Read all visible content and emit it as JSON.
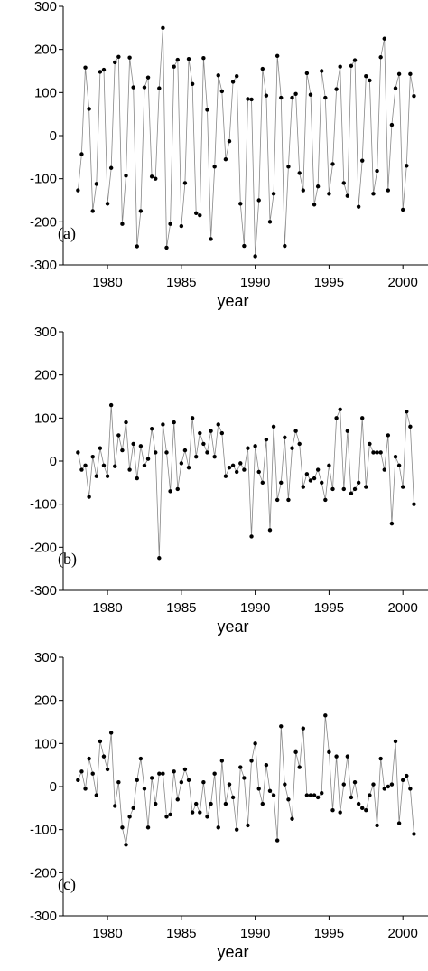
{
  "chart_data": [
    {
      "type": "line",
      "annotation": "(a)",
      "xlabel": "year",
      "x": [
        1978,
        1978.25,
        1978.5,
        1978.75,
        1979,
        1979.25,
        1979.5,
        1979.75,
        1980,
        1980.25,
        1980.5,
        1980.75,
        1981,
        1981.25,
        1981.5,
        1981.75,
        1982,
        1982.25,
        1982.5,
        1982.75,
        1983,
        1983.25,
        1983.5,
        1983.75,
        1984,
        1984.25,
        1984.5,
        1984.75,
        1985,
        1985.25,
        1985.5,
        1985.75,
        1986,
        1986.25,
        1986.5,
        1986.75,
        1987,
        1987.25,
        1987.5,
        1987.75,
        1988,
        1988.25,
        1988.5,
        1988.75,
        1989,
        1989.25,
        1989.5,
        1989.75,
        1990,
        1990.25,
        1990.5,
        1990.75,
        1991,
        1991.25,
        1991.5,
        1991.75,
        1992,
        1992.25,
        1992.5,
        1992.75,
        1993,
        1993.25,
        1993.5,
        1993.75,
        1994,
        1994.25,
        1994.5,
        1994.75,
        1995,
        1995.25,
        1995.5,
        1995.75,
        1996,
        1996.25,
        1996.5,
        1996.75,
        1997,
        1997.25,
        1997.5,
        1997.75,
        1998,
        1998.25,
        1998.5,
        1998.75,
        1999,
        1999.25,
        1999.5,
        1999.75,
        2000,
        2000.25,
        2000.5,
        2000.75
      ],
      "values": [
        -127,
        -43,
        158,
        62,
        -175,
        -112,
        148,
        153,
        -158,
        -75,
        170,
        183,
        -205,
        -93,
        181,
        112,
        -257,
        -175,
        112,
        135,
        -95,
        -100,
        110,
        250,
        -260,
        -205,
        160,
        176,
        -210,
        -110,
        178,
        120,
        -180,
        -185,
        180,
        60,
        -240,
        -72,
        140,
        103,
        -55,
        -13,
        125,
        138,
        -158,
        -256,
        85,
        84,
        -280,
        -150,
        155,
        93,
        -200,
        -135,
        185,
        88,
        -256,
        -72,
        88,
        97,
        -87,
        -127,
        145,
        95,
        -160,
        -118,
        150,
        88,
        -135,
        -66,
        108,
        160,
        -110,
        -140,
        162,
        175,
        -165,
        -58,
        138,
        128,
        -135,
        -82,
        182,
        225,
        -127,
        25,
        110,
        143,
        -172,
        -70,
        143,
        92
      ],
      "xlim": [
        1977,
        2001.7
      ],
      "xticks": [
        1980,
        1985,
        1990,
        1995,
        2000
      ],
      "ylim": [
        -300,
        300
      ],
      "yticks": [
        -300,
        -200,
        -100,
        0,
        100,
        200,
        300
      ],
      "color": "#888888",
      "marker_color": "#000000"
    },
    {
      "type": "line",
      "annotation": "(b)",
      "xlabel": "year",
      "x": [
        1978,
        1978.25,
        1978.5,
        1978.75,
        1979,
        1979.25,
        1979.5,
        1979.75,
        1980,
        1980.25,
        1980.5,
        1980.75,
        1981,
        1981.25,
        1981.5,
        1981.75,
        1982,
        1982.25,
        1982.5,
        1982.75,
        1983,
        1983.25,
        1983.5,
        1983.75,
        1984,
        1984.25,
        1984.5,
        1984.75,
        1985,
        1985.25,
        1985.5,
        1985.75,
        1986,
        1986.25,
        1986.5,
        1986.75,
        1987,
        1987.25,
        1987.5,
        1987.75,
        1988,
        1988.25,
        1988.5,
        1988.75,
        1989,
        1989.25,
        1989.5,
        1989.75,
        1990,
        1990.25,
        1990.5,
        1990.75,
        1991,
        1991.25,
        1991.5,
        1991.75,
        1992,
        1992.25,
        1992.5,
        1992.75,
        1993,
        1993.25,
        1993.5,
        1993.75,
        1994,
        1994.25,
        1994.5,
        1994.75,
        1995,
        1995.25,
        1995.5,
        1995.75,
        1996,
        1996.25,
        1996.5,
        1996.75,
        1997,
        1997.25,
        1997.5,
        1997.75,
        1998,
        1998.25,
        1998.5,
        1998.75,
        1999,
        1999.25,
        1999.5,
        1999.75,
        2000,
        2000.25,
        2000.5,
        2000.75
      ],
      "values": [
        20,
        -20,
        -10,
        -83,
        10,
        -35,
        30,
        -10,
        -35,
        130,
        -12,
        60,
        25,
        90,
        -20,
        40,
        -40,
        35,
        -10,
        5,
        75,
        20,
        -225,
        85,
        20,
        -70,
        90,
        -65,
        -5,
        25,
        -15,
        100,
        10,
        65,
        40,
        20,
        70,
        10,
        85,
        65,
        -35,
        -15,
        -10,
        -25,
        -5,
        -20,
        30,
        -175,
        35,
        -25,
        -50,
        50,
        -160,
        80,
        -90,
        -50,
        55,
        -90,
        30,
        70,
        40,
        -60,
        -30,
        -45,
        -40,
        -20,
        -50,
        -90,
        -10,
        -65,
        100,
        120,
        -65,
        70,
        -75,
        -65,
        -50,
        100,
        -60,
        40,
        20,
        20,
        20,
        -20,
        60,
        -145,
        10,
        -10,
        -60,
        115,
        80,
        -100
      ],
      "xlim": [
        1977,
        2001.7
      ],
      "xticks": [
        1980,
        1985,
        1990,
        1995,
        2000
      ],
      "ylim": [
        -300,
        300
      ],
      "yticks": [
        -300,
        -200,
        -100,
        0,
        100,
        200,
        300
      ],
      "color": "#888888",
      "marker_color": "#000000"
    },
    {
      "type": "line",
      "annotation": "(c)",
      "xlabel": "year",
      "x": [
        1978,
        1978.25,
        1978.5,
        1978.75,
        1979,
        1979.25,
        1979.5,
        1979.75,
        1980,
        1980.25,
        1980.5,
        1980.75,
        1981,
        1981.25,
        1981.5,
        1981.75,
        1982,
        1982.25,
        1982.5,
        1982.75,
        1983,
        1983.25,
        1983.5,
        1983.75,
        1984,
        1984.25,
        1984.5,
        1984.75,
        1985,
        1985.25,
        1985.5,
        1985.75,
        1986,
        1986.25,
        1986.5,
        1986.75,
        1987,
        1987.25,
        1987.5,
        1987.75,
        1988,
        1988.25,
        1988.5,
        1988.75,
        1989,
        1989.25,
        1989.5,
        1989.75,
        1990,
        1990.25,
        1990.5,
        1990.75,
        1991,
        1991.25,
        1991.5,
        1991.75,
        1992,
        1992.25,
        1992.5,
        1992.75,
        1993,
        1993.25,
        1993.5,
        1993.75,
        1994,
        1994.25,
        1994.5,
        1994.75,
        1995,
        1995.25,
        1995.5,
        1995.75,
        1996,
        1996.25,
        1996.5,
        1996.75,
        1997,
        1997.25,
        1997.5,
        1997.75,
        1998,
        1998.25,
        1998.5,
        1998.75,
        1999,
        1999.25,
        1999.5,
        1999.75,
        2000,
        2000.25,
        2000.5,
        2000.75
      ],
      "values": [
        15,
        35,
        -5,
        65,
        30,
        -20,
        105,
        70,
        40,
        125,
        -45,
        10,
        -95,
        -135,
        -70,
        -50,
        15,
        65,
        -5,
        -95,
        20,
        -40,
        30,
        30,
        -70,
        -65,
        35,
        -30,
        10,
        40,
        15,
        -60,
        -40,
        -60,
        10,
        -70,
        -40,
        30,
        -95,
        60,
        -40,
        5,
        -25,
        -100,
        45,
        20,
        -90,
        60,
        100,
        -5,
        -40,
        50,
        -10,
        -20,
        -125,
        140,
        5,
        -30,
        -75,
        80,
        45,
        135,
        -20,
        -20,
        -20,
        -25,
        -15,
        165,
        80,
        -55,
        70,
        -60,
        5,
        70,
        -25,
        10,
        -40,
        -50,
        -55,
        -20,
        5,
        -90,
        65,
        -5,
        0,
        5,
        105,
        -85,
        15,
        25,
        -5,
        -110
      ],
      "xlim": [
        1977,
        2001.7
      ],
      "xticks": [
        1980,
        1985,
        1990,
        1995,
        2000
      ],
      "ylim": [
        -300,
        300
      ],
      "yticks": [
        -300,
        -200,
        -100,
        0,
        100,
        200,
        300
      ],
      "color": "#888888",
      "marker_color": "#000000"
    }
  ]
}
